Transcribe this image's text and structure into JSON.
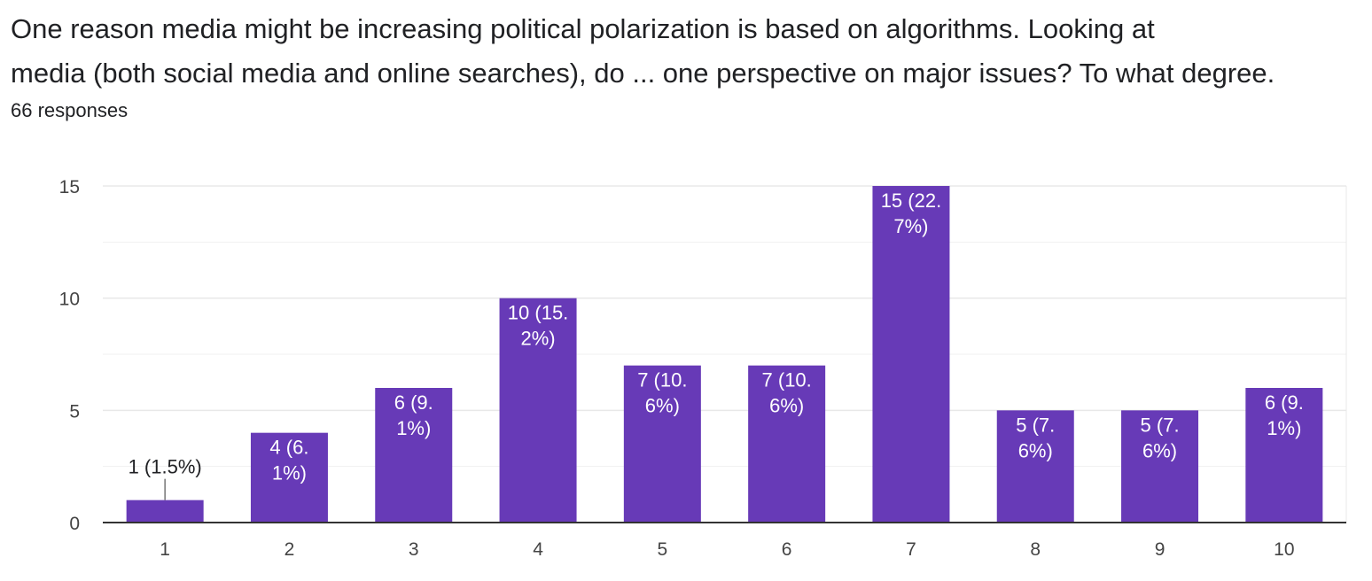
{
  "question": {
    "title_line1": "One reason media might be increasing political polarization is based on algorithms. Looking at",
    "title_line2": "media (both social media and online searches), do ... one perspective on major issues? To what degree.",
    "responses": "66 responses"
  },
  "colors": {
    "bar": "#673ab7",
    "grid": "#e8e8e8",
    "axis": "#333333",
    "leader": "#757575"
  },
  "chart_data": {
    "type": "bar",
    "title": "",
    "xlabel": "",
    "ylabel": "",
    "categories": [
      "1",
      "2",
      "3",
      "4",
      "5",
      "6",
      "7",
      "8",
      "9",
      "10"
    ],
    "values": [
      1,
      4,
      6,
      10,
      7,
      7,
      15,
      5,
      5,
      6
    ],
    "labels": [
      [
        "1 (1.5%)"
      ],
      [
        "4 (6.",
        "1%)"
      ],
      [
        "6 (9.",
        "1%)"
      ],
      [
        "10 (15.",
        "2%)"
      ],
      [
        "7 (10.",
        "6%)"
      ],
      [
        "7 (10.",
        "6%)"
      ],
      [
        "15 (22.",
        "7%)"
      ],
      [
        "5 (7.",
        "6%)"
      ],
      [
        "5 (7.",
        "6%)"
      ],
      [
        "6 (9.",
        "1%)"
      ]
    ],
    "ylim": [
      0,
      15
    ],
    "yticks": [
      0,
      5,
      10,
      15
    ],
    "minor_gridlines": [
      2.5,
      7.5,
      12.5
    ],
    "grid": true,
    "legend": "none"
  }
}
